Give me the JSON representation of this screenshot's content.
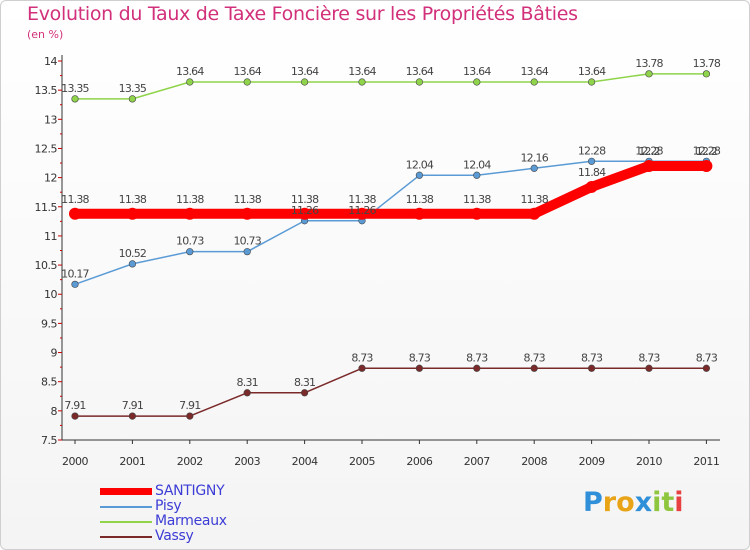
{
  "chart_data": {
    "type": "line",
    "title": "Evolution du Taux de Taxe Foncière sur les Propriétés Bâties",
    "ylabel": "(en %)",
    "xlabel": "",
    "categories": [
      "2000",
      "2001",
      "2002",
      "2003",
      "2004",
      "2005",
      "2006",
      "2007",
      "2008",
      "2009",
      "2010",
      "2011"
    ],
    "ylim": [
      7.5,
      14
    ],
    "yticks": [
      "7.5",
      "8",
      "8.5",
      "9",
      "9.5",
      "10",
      "10.5",
      "11",
      "11.5",
      "12",
      "12.5",
      "13",
      "13.5",
      "14"
    ],
    "grid": false,
    "legend_position": "bottom-left",
    "series": [
      {
        "name": "SANTIGNY",
        "color": "#ff0000",
        "values": [
          11.38,
          11.38,
          11.38,
          11.38,
          11.38,
          11.38,
          11.38,
          11.38,
          11.38,
          11.84,
          12.2,
          12.2
        ],
        "labels": [
          "11.38",
          "11.38",
          "11.38",
          "11.38",
          "11.38",
          "11.38",
          "11.38",
          "11.38",
          "11.38",
          "11.84",
          "12.2",
          "12.2"
        ]
      },
      {
        "name": "Pisy",
        "color": "#5b9bd5",
        "values": [
          10.17,
          10.52,
          10.73,
          10.73,
          11.26,
          11.26,
          12.04,
          12.04,
          12.16,
          12.28,
          12.28,
          12.28
        ],
        "labels": [
          "10.17",
          "10.52",
          "10.73",
          "10.73",
          "11.26",
          "11.26",
          "12.04",
          "12.04",
          "12.16",
          "12.28",
          "12.28",
          "12.28"
        ]
      },
      {
        "name": "Marmeaux",
        "color": "#8fd44a",
        "values": [
          13.35,
          13.35,
          13.64,
          13.64,
          13.64,
          13.64,
          13.64,
          13.64,
          13.64,
          13.64,
          13.78,
          13.78
        ],
        "labels": [
          "13.35",
          "13.35",
          "13.64",
          "13.64",
          "13.64",
          "13.64",
          "13.64",
          "13.64",
          "13.64",
          "13.64",
          "13.78",
          "13.78"
        ]
      },
      {
        "name": "Vassy",
        "color": "#7b2a2a",
        "values": [
          7.91,
          7.91,
          7.91,
          8.31,
          8.31,
          8.73,
          8.73,
          8.73,
          8.73,
          8.73,
          8.73,
          8.73
        ],
        "labels": [
          "7.91",
          "7.91",
          "7.91",
          "8.31",
          "8.31",
          "8.73",
          "8.73",
          "8.73",
          "8.73",
          "8.73",
          "8.73",
          "8.73"
        ]
      }
    ]
  },
  "logo": {
    "text": "Proxiti",
    "letters": [
      "P",
      "r",
      "o",
      "x",
      "i",
      "t",
      "i"
    ],
    "colors": [
      "#2f8fd8",
      "#e8a317",
      "#e8a317",
      "#2f8fd8",
      "#8fc63f",
      "#8fc63f",
      "#e84040"
    ]
  }
}
